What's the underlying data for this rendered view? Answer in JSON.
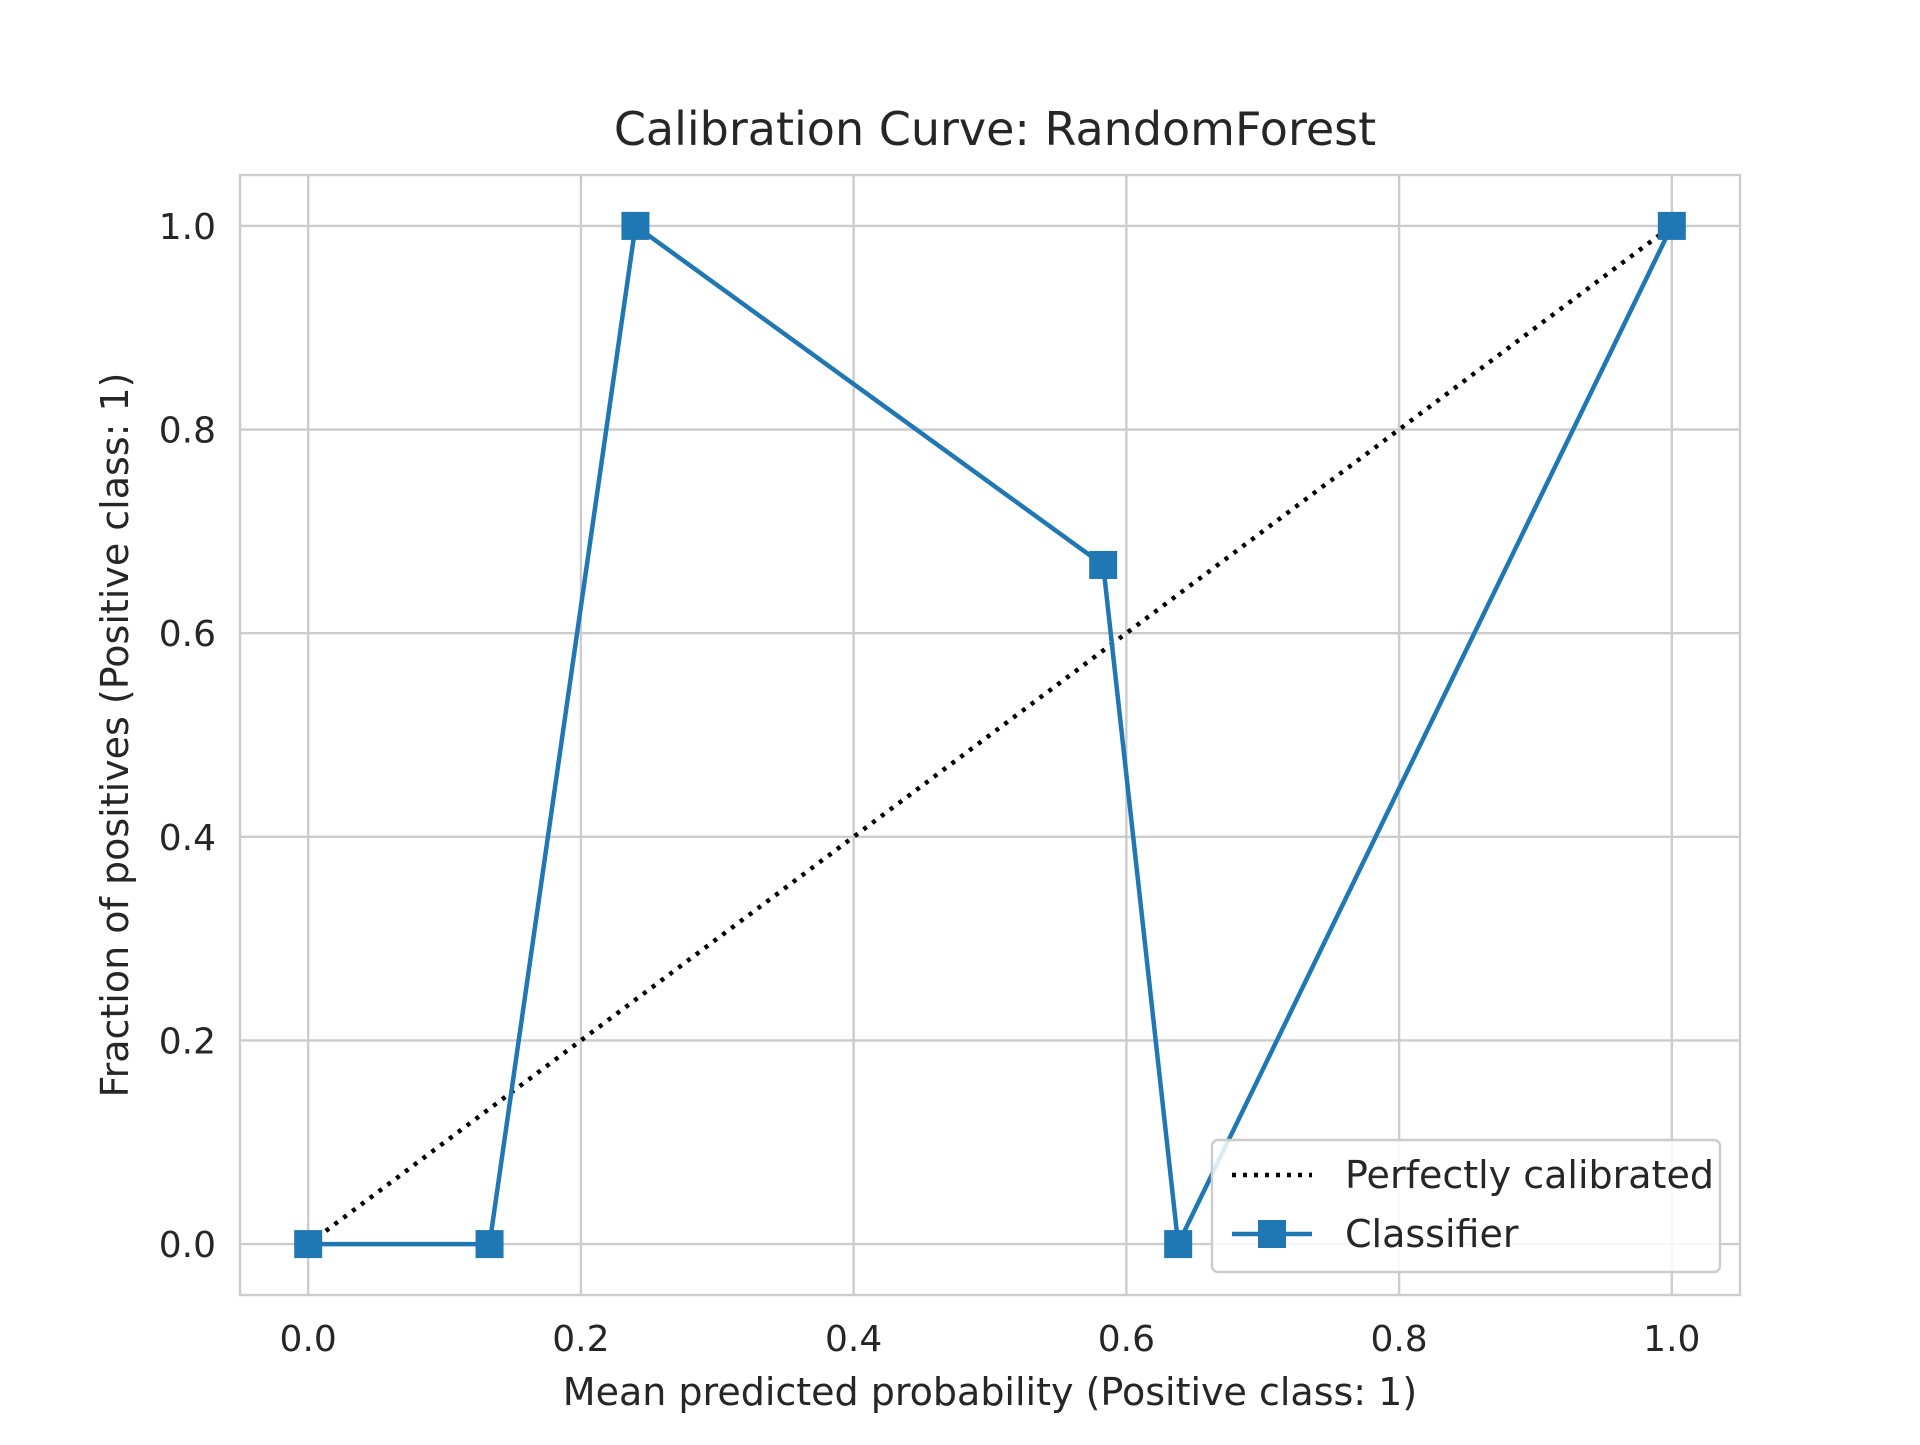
{
  "chart_data": {
    "type": "line",
    "title": "Calibration Curve: RandomForest",
    "xlabel": "Mean predicted probability (Positive class: 1)",
    "ylabel": "Fraction of positives (Positive class: 1)",
    "xlim": [
      -0.05,
      1.05
    ],
    "ylim": [
      -0.05,
      1.05
    ],
    "xticks": [
      "0.0",
      "0.2",
      "0.4",
      "0.6",
      "0.8",
      "1.0"
    ],
    "yticks": [
      "0.0",
      "0.2",
      "0.4",
      "0.6",
      "0.8",
      "1.0"
    ],
    "grid": true,
    "legend_position": "lower-right",
    "series": [
      {
        "name": "Perfectly calibrated",
        "style": "dotted",
        "color": "#000000",
        "marker": "none",
        "x": [
          0.0,
          1.0
        ],
        "y": [
          0.0,
          1.0
        ]
      },
      {
        "name": "Classifier",
        "style": "solid",
        "color": "#1f77b4",
        "marker": "square",
        "x": [
          0.0,
          0.133,
          0.24,
          0.583,
          0.638,
          1.0
        ],
        "y": [
          0.0,
          0.0,
          1.0,
          0.667,
          0.0,
          1.0
        ]
      }
    ]
  }
}
